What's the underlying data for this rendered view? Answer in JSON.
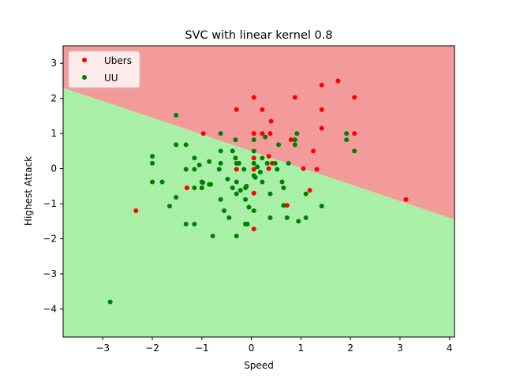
{
  "chart_data": {
    "type": "scatter",
    "title": "SVC with linear kernel 0.8",
    "xlabel": "Speed",
    "ylabel": "Highest Attack",
    "xlim": [
      -3.8,
      4.1
    ],
    "ylim": [
      -4.8,
      3.5
    ],
    "xticks": [
      -3,
      -2,
      -1,
      0,
      1,
      2,
      3,
      4
    ],
    "yticks": [
      -4,
      -3,
      -2,
      -1,
      0,
      1,
      2,
      3
    ],
    "grid": false,
    "legend_position": "top-left",
    "decision_regions": {
      "boundary_line": [
        [
          -3.8,
          2.3
        ],
        [
          4.1,
          -1.45
        ]
      ],
      "upper_region_class": "Ubers",
      "lower_region_class": "UU",
      "colors": {
        "Ubers": "#f39b9b",
        "UU": "#a8f0a8"
      }
    },
    "series": [
      {
        "name": "Ubers",
        "color": "#ff0000",
        "points": [
          [
            -2.33,
            -1.2
          ],
          [
            -1.3,
            -0.55
          ],
          [
            -0.97,
            1.0
          ],
          [
            -0.3,
            1.68
          ],
          [
            -0.3,
            -0.02
          ],
          [
            0.05,
            2.03
          ],
          [
            0.05,
            1.0
          ],
          [
            0.05,
            0.3
          ],
          [
            0.05,
            -0.02
          ],
          [
            0.05,
            -0.7
          ],
          [
            0.05,
            -1.72
          ],
          [
            0.22,
            1.68
          ],
          [
            0.22,
            1.0
          ],
          [
            0.35,
            0.35
          ],
          [
            0.38,
            1.0
          ],
          [
            0.4,
            1.35
          ],
          [
            0.35,
            0.0
          ],
          [
            0.42,
            0.15
          ],
          [
            0.72,
            -1.05
          ],
          [
            0.8,
            0.82
          ],
          [
            0.88,
            2.03
          ],
          [
            1.05,
            0.0
          ],
          [
            1.18,
            -0.62
          ],
          [
            1.25,
            0.5
          ],
          [
            1.32,
            -0.02
          ],
          [
            1.42,
            2.38
          ],
          [
            1.42,
            1.68
          ],
          [
            1.42,
            1.15
          ],
          [
            1.75,
            2.5
          ],
          [
            2.08,
            2.03
          ],
          [
            2.08,
            1.0
          ],
          [
            3.12,
            -0.88
          ]
        ]
      },
      {
        "name": "UU",
        "color": "#008000",
        "points": [
          [
            -2.85,
            -3.8
          ],
          [
            -2.0,
            0.35
          ],
          [
            -2.0,
            0.15
          ],
          [
            -2.0,
            -0.38
          ],
          [
            -1.8,
            -0.38
          ],
          [
            -1.65,
            -1.07
          ],
          [
            -1.52,
            1.52
          ],
          [
            -1.52,
            0.68
          ],
          [
            -1.52,
            -0.82
          ],
          [
            -1.32,
            0.68
          ],
          [
            -1.32,
            -0.02
          ],
          [
            -1.32,
            -1.58
          ],
          [
            -1.15,
            0.3
          ],
          [
            -1.15,
            -0.02
          ],
          [
            -1.15,
            -0.55
          ],
          [
            -1.15,
            -1.58
          ],
          [
            -1.05,
            0.1
          ],
          [
            -1.0,
            -0.38
          ],
          [
            -1.0,
            -0.55
          ],
          [
            -0.98,
            -0.4
          ],
          [
            -0.85,
            0.2
          ],
          [
            -0.85,
            -0.45
          ],
          [
            -0.82,
            -0.45
          ],
          [
            -0.78,
            -1.92
          ],
          [
            -0.65,
            -0.02
          ],
          [
            -0.62,
            1.0
          ],
          [
            -0.62,
            0.5
          ],
          [
            -0.62,
            0.15
          ],
          [
            -0.62,
            -0.88
          ],
          [
            -0.55,
            -1.2
          ],
          [
            -0.48,
            -0.3
          ],
          [
            -0.45,
            -1.4
          ],
          [
            -0.38,
            0.5
          ],
          [
            -0.38,
            -0.55
          ],
          [
            -0.32,
            0.82
          ],
          [
            -0.32,
            0.3
          ],
          [
            -0.3,
            0.15
          ],
          [
            -0.3,
            -0.38
          ],
          [
            -0.3,
            -0.72
          ],
          [
            -0.3,
            -1.92
          ],
          [
            -0.25,
            0.15
          ],
          [
            -0.22,
            -0.62
          ],
          [
            -0.15,
            -0.02
          ],
          [
            -0.12,
            -0.55
          ],
          [
            -0.12,
            -0.88
          ],
          [
            -0.12,
            -1.58
          ],
          [
            -0.1,
            -0.5
          ],
          [
            -0.08,
            -1.58
          ],
          [
            -0.05,
            -1.1
          ],
          [
            0.05,
            0.82
          ],
          [
            0.05,
            0.5
          ],
          [
            0.05,
            0.15
          ],
          [
            0.05,
            -0.2
          ],
          [
            0.05,
            -1.2
          ],
          [
            0.08,
            -0.25
          ],
          [
            0.12,
            0.05
          ],
          [
            0.18,
            -0.1
          ],
          [
            0.22,
            0.3
          ],
          [
            0.22,
            -0.38
          ],
          [
            0.28,
            0.9
          ],
          [
            0.32,
            0.15
          ],
          [
            0.38,
            -0.72
          ],
          [
            0.38,
            -1.4
          ],
          [
            0.48,
            0.15
          ],
          [
            0.52,
            -0.02
          ],
          [
            0.55,
            0.68
          ],
          [
            0.62,
            -0.38
          ],
          [
            0.65,
            -0.55
          ],
          [
            0.65,
            -1.05
          ],
          [
            0.72,
            -1.4
          ],
          [
            0.75,
            0.15
          ],
          [
            0.88,
            0.82
          ],
          [
            0.88,
            0.68
          ],
          [
            0.92,
            1.0
          ],
          [
            0.95,
            -1.5
          ],
          [
            1.1,
            -0.72
          ],
          [
            1.1,
            -1.4
          ],
          [
            1.42,
            -1.07
          ],
          [
            1.92,
            1.0
          ],
          [
            1.92,
            0.82
          ],
          [
            2.08,
            0.5
          ]
        ]
      }
    ]
  }
}
